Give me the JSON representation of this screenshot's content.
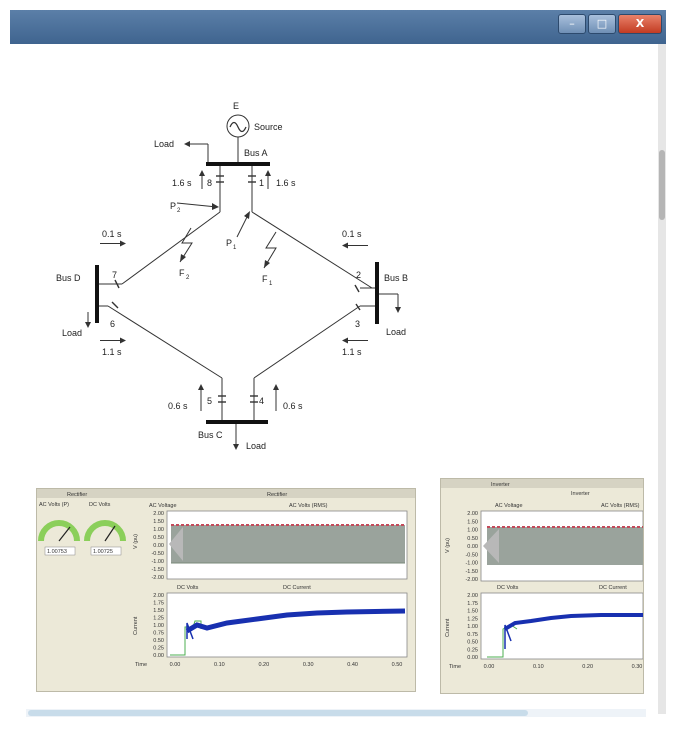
{
  "window": {
    "controls": {
      "minimize": "–",
      "maximize": "□",
      "close": "X"
    }
  },
  "diagram": {
    "source": {
      "symbol": "E",
      "label": "Source"
    },
    "buses": {
      "a": "Bus A",
      "b": "Bus B",
      "c": "Bus C",
      "d": "Bus D"
    },
    "load": "Load",
    "breakers": {
      "b1": "1",
      "b2": "2",
      "b3": "3",
      "b4": "4",
      "b5": "5",
      "b6": "6",
      "b7": "7",
      "b8": "8"
    },
    "times": {
      "bus_a_left": "1.6 s",
      "bus_a_right": "1.6 s",
      "bus_d_top": "0.1 s",
      "bus_d_bottom": "1.1 s",
      "bus_b_top": "0.1 s",
      "bus_b_bottom": "1.1 s",
      "bus_c_left": "0.6 s",
      "bus_c_right": "0.6 s"
    },
    "faults": {
      "f1": "F",
      "f1_sub": "1",
      "f2": "F",
      "f2_sub": "2"
    },
    "power": {
      "p1": "P",
      "p1_sub": "1",
      "p2": "P",
      "p2_sub": "2"
    }
  },
  "rectifier_panel": {
    "title": "Rectifier",
    "gauge_1": "AC Volts (P)",
    "gauge_2": "DC Volts",
    "gauge_1_value": "1.00753",
    "gauge_2_value": "1.00725",
    "plot_title": "Rectifier",
    "voltage_legend_1": "AC Voltage",
    "voltage_legend_2": "AC Volts (RMS)",
    "voltage_ylabel": "V (pu)",
    "current_legend_1": "DC Volts",
    "current_legend_2": "DC Current",
    "current_ylabel": "Current",
    "time_label": "Time"
  },
  "inverter_panel": {
    "title": "Inverter",
    "plot_title": "Inverter",
    "voltage_legend_1": "AC Voltage",
    "voltage_legend_2": "AC Volts (RMS)",
    "voltage_ylabel": "V (pu)",
    "current_legend_1": "DC Volts",
    "current_legend_2": "DC Current",
    "current_ylabel": "Current",
    "time_label": "Time"
  },
  "voltage_ticks": [
    "2.00",
    "1.50",
    "1.00",
    "0.50",
    "0.00",
    "-0.50",
    "-1.00",
    "-1.50",
    "-2.00"
  ],
  "current_ticks": [
    "2.00",
    "1.75",
    "1.50",
    "1.25",
    "1.00",
    "0.75",
    "0.50",
    "0.25",
    "0.00"
  ],
  "rectifier_time_ticks": [
    "0.00",
    "0.10",
    "0.20",
    "0.30",
    "0.40",
    "0.50"
  ],
  "inverter_time_ticks": [
    "0.00",
    "0.10",
    "0.20",
    "0.30"
  ]
}
